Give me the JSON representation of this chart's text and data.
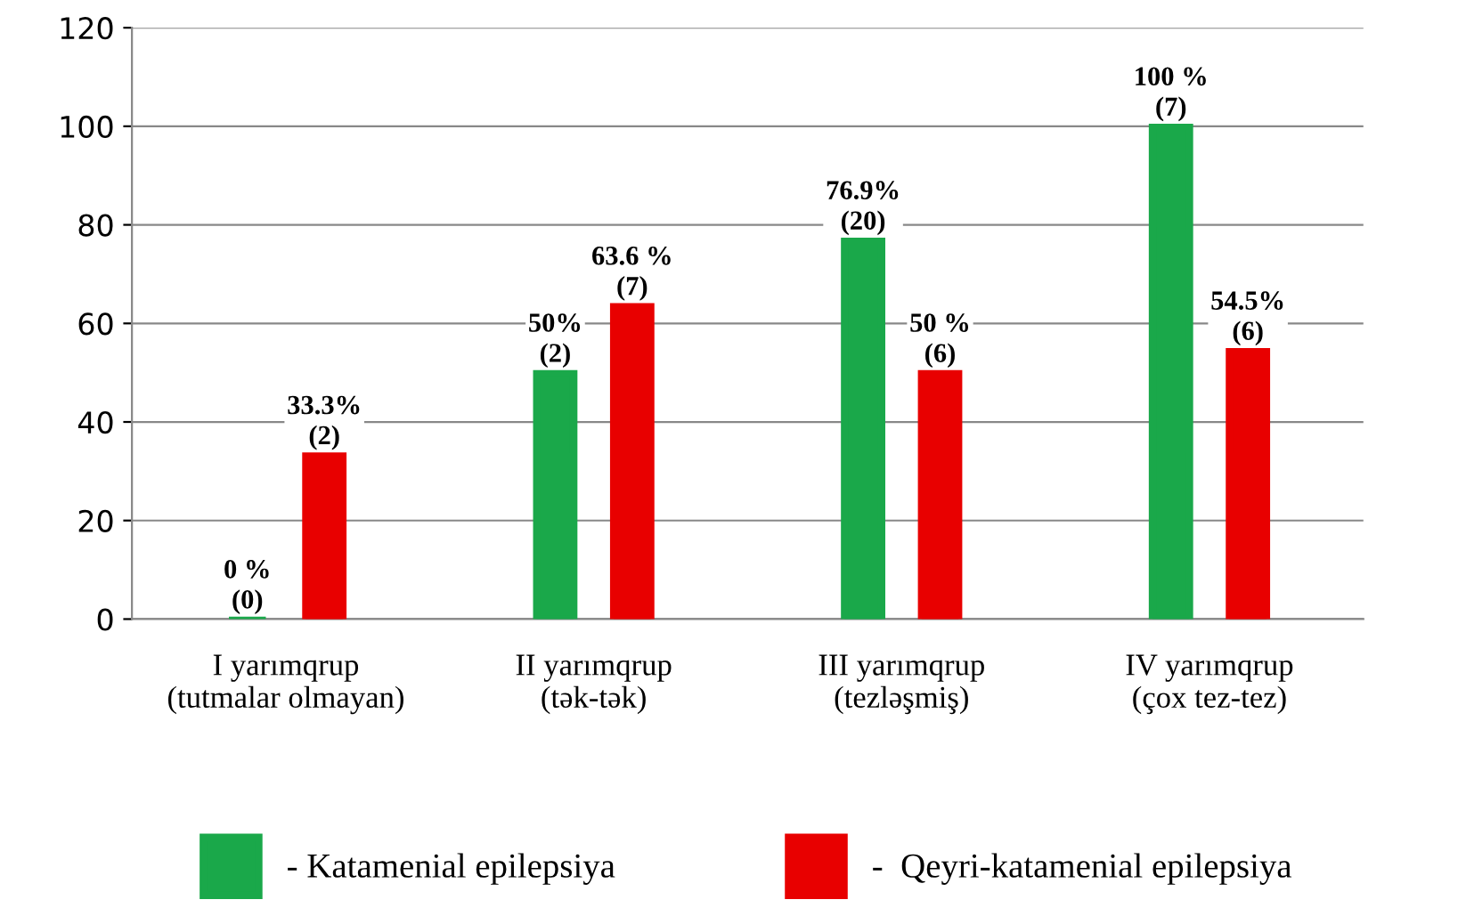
{
  "chart_data": {
    "type": "bar",
    "categories": [
      "I yarımqrup\n(tutmalar olmayan)",
      "II yarımqrup\n(tək-tək)",
      "III yarımqrup\n(tezləşmiş)",
      "IV yarımqrup\n(çox tez-tez)"
    ],
    "series": [
      {
        "name": "- Katamenial epilepsiya",
        "color": "#1aa84a",
        "values": [
          0,
          50,
          76.9,
          100
        ],
        "value_labels": [
          "0 %\n(0)",
          "50%\n(2)",
          "76.9%\n(20)",
          "100 %\n(7)"
        ]
      },
      {
        "name": "-  Qeyri-katamenial epilepsiya",
        "color": "#e80000",
        "values": [
          33.3,
          63.6,
          50,
          54.5
        ],
        "value_labels": [
          "33.3%\n(2)",
          "63.6 %\n(7)",
          "50 %\n(6)",
          "54.5%\n(6)"
        ]
      }
    ],
    "ylim": [
      0,
      120
    ],
    "yticks": [
      0,
      20,
      40,
      60,
      80,
      100,
      120
    ],
    "grid": "y",
    "legend": "bottom"
  }
}
